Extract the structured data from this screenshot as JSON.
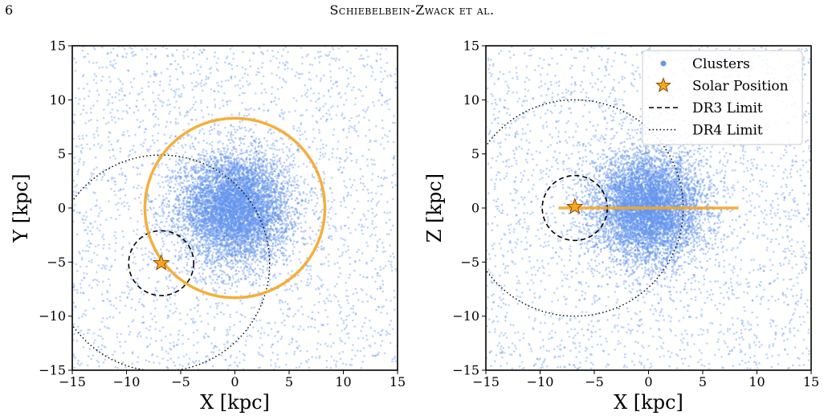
{
  "header": {
    "page_number": "6",
    "authors": "Schiebelbein-Zwack et al."
  },
  "colors": {
    "clusters": "#6495ed",
    "solar": "#f5a623",
    "solar_edge": "#8a4b00",
    "orange_ring": "#f5a623",
    "limits": "#000000"
  },
  "chart_data": [
    {
      "type": "scatter",
      "id": "xy",
      "xlabel": "X [kpc]",
      "ylabel": "Y [kpc]",
      "xlim": [
        -15,
        15
      ],
      "ylim": [
        -15,
        15
      ],
      "xticks": [
        -15,
        -10,
        -5,
        0,
        5,
        10,
        15
      ],
      "yticks": [
        -15,
        -10,
        -5,
        0,
        5,
        10,
        15
      ],
      "xtick_labels": [
        "−15",
        "−10",
        "−5",
        "0",
        "5",
        "10",
        "15"
      ],
      "ytick_labels": [
        "−15",
        "−10",
        "−5",
        "0",
        "5",
        "10",
        "15"
      ],
      "grid": false,
      "series": [
        {
          "name": "Clusters",
          "kind": "points",
          "center": [
            0,
            0
          ],
          "core_sigma_kpc": 2.5,
          "count_approx": 15000
        },
        {
          "name": "Solar Position",
          "kind": "marker",
          "x": -6.8,
          "y": -5.1
        },
        {
          "name": "DR3 Limit",
          "kind": "circle",
          "cx": -6.8,
          "cy": -5.1,
          "r": 3.0,
          "style": "dashed"
        },
        {
          "name": "DR4 Limit",
          "kind": "circle",
          "cx": -6.8,
          "cy": -5.1,
          "r": 10.0,
          "style": "dotted"
        },
        {
          "kind": "circle",
          "cx": 0,
          "cy": 0,
          "r": 8.3,
          "style": "solid",
          "color": "#f5a623"
        }
      ]
    },
    {
      "type": "scatter",
      "id": "xz",
      "xlabel": "X [kpc]",
      "ylabel": "Z [kpc]",
      "xlim": [
        -15,
        15
      ],
      "ylim": [
        -15,
        15
      ],
      "xticks": [
        -15,
        -10,
        -5,
        0,
        5,
        10,
        15
      ],
      "yticks": [
        -15,
        -10,
        -5,
        0,
        5,
        10,
        15
      ],
      "xtick_labels": [
        "−15",
        "−10",
        "−5",
        "0",
        "5",
        "10",
        "15"
      ],
      "ytick_labels": [
        "−15",
        "−10",
        "−5",
        "0",
        "5",
        "10",
        "15"
      ],
      "grid": false,
      "legend": {
        "placement": "top-right",
        "entries": [
          "Clusters",
          "Solar Position",
          "DR3 Limit",
          "DR4 Limit"
        ]
      },
      "series": [
        {
          "name": "Clusters",
          "kind": "points",
          "center": [
            0,
            0
          ],
          "core_sigma_kpc": 2.5,
          "count_approx": 15000
        },
        {
          "name": "Solar Position",
          "kind": "marker",
          "x": -6.8,
          "y": 0.1
        },
        {
          "name": "DR3 Limit",
          "kind": "circle",
          "cx": -6.8,
          "cy": 0,
          "r": 3.0,
          "style": "dashed"
        },
        {
          "name": "DR4 Limit",
          "kind": "circle",
          "cx": -6.8,
          "cy": 0,
          "r": 10.0,
          "style": "dotted"
        },
        {
          "kind": "line",
          "x": [
            -8.3,
            8.3
          ],
          "y": [
            0,
            0
          ],
          "color": "#f5a623"
        }
      ]
    }
  ]
}
